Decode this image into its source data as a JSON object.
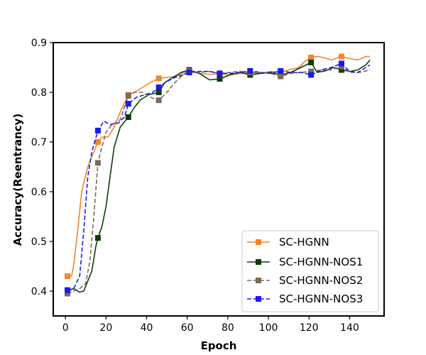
{
  "chart_data": {
    "type": "line",
    "title": "",
    "xlabel": "Epoch",
    "ylabel": "Accuracy(Reentrancy)",
    "xlim": [
      -6,
      157
    ],
    "ylim": [
      0.35,
      0.9
    ],
    "xticks": [
      0,
      20,
      40,
      60,
      80,
      100,
      120,
      140
    ],
    "yticks": [
      0.4,
      0.5,
      0.6,
      0.7,
      0.8,
      0.9
    ],
    "grid": false,
    "legend_position": "lower-right",
    "series": [
      {
        "name": "SC-HGNN",
        "color": "#f5842b",
        "dash": "solid",
        "marker": "square",
        "points": [
          [
            1,
            0.43
          ],
          [
            3,
            0.43
          ],
          [
            4,
            0.45
          ],
          [
            6,
            0.52
          ],
          [
            8,
            0.6
          ],
          [
            11,
            0.65
          ],
          [
            14,
            0.68
          ],
          [
            16,
            0.7
          ],
          [
            18,
            0.71
          ],
          [
            21,
            0.71
          ],
          [
            24,
            0.73
          ],
          [
            27,
            0.76
          ],
          [
            31,
            0.795
          ],
          [
            34,
            0.8
          ],
          [
            38,
            0.81
          ],
          [
            42,
            0.82
          ],
          [
            46,
            0.828
          ],
          [
            50,
            0.83
          ],
          [
            55,
            0.832
          ],
          [
            58,
            0.84
          ],
          [
            61,
            0.842
          ],
          [
            66,
            0.838
          ],
          [
            71,
            0.836
          ],
          [
            76,
            0.838
          ],
          [
            81,
            0.835
          ],
          [
            86,
            0.838
          ],
          [
            91,
            0.84
          ],
          [
            96,
            0.838
          ],
          [
            101,
            0.842
          ],
          [
            106,
            0.84
          ],
          [
            110,
            0.845
          ],
          [
            115,
            0.85
          ],
          [
            118,
            0.862
          ],
          [
            121,
            0.87
          ],
          [
            124,
            0.872
          ],
          [
            127,
            0.87
          ],
          [
            131,
            0.865
          ],
          [
            136,
            0.872
          ],
          [
            140,
            0.868
          ],
          [
            144,
            0.865
          ],
          [
            148,
            0.872
          ],
          [
            150,
            0.872
          ]
        ],
        "markers": [
          [
            1,
            0.43
          ],
          [
            16,
            0.7
          ],
          [
            31,
            0.795
          ],
          [
            46,
            0.828
          ],
          [
            61,
            0.842
          ],
          [
            76,
            0.838
          ],
          [
            91,
            0.84
          ],
          [
            106,
            0.84
          ],
          [
            121,
            0.87
          ],
          [
            136,
            0.872
          ]
        ]
      },
      {
        "name": "SC-HGNN-NOS1",
        "color": "#0a3d0a",
        "dash": "solid",
        "marker": "square",
        "points": [
          [
            1,
            0.4
          ],
          [
            4,
            0.405
          ],
          [
            7,
            0.398
          ],
          [
            9,
            0.4
          ],
          [
            11,
            0.42
          ],
          [
            13,
            0.44
          ],
          [
            15,
            0.49
          ],
          [
            16,
            0.507
          ],
          [
            18,
            0.53
          ],
          [
            20,
            0.57
          ],
          [
            22,
            0.63
          ],
          [
            24,
            0.69
          ],
          [
            27,
            0.73
          ],
          [
            31,
            0.75
          ],
          [
            34,
            0.77
          ],
          [
            37,
            0.785
          ],
          [
            41,
            0.795
          ],
          [
            46,
            0.8
          ],
          [
            49,
            0.82
          ],
          [
            53,
            0.83
          ],
          [
            57,
            0.84
          ],
          [
            61,
            0.845
          ],
          [
            66,
            0.838
          ],
          [
            71,
            0.825
          ],
          [
            76,
            0.827
          ],
          [
            81,
            0.835
          ],
          [
            86,
            0.84
          ],
          [
            91,
            0.835
          ],
          [
            96,
            0.838
          ],
          [
            101,
            0.84
          ],
          [
            106,
            0.835
          ],
          [
            111,
            0.84
          ],
          [
            116,
            0.85
          ],
          [
            121,
            0.86
          ],
          [
            124,
            0.84
          ],
          [
            128,
            0.843
          ],
          [
            132,
            0.85
          ],
          [
            136,
            0.845
          ],
          [
            140,
            0.842
          ],
          [
            144,
            0.845
          ],
          [
            148,
            0.855
          ],
          [
            150,
            0.865
          ]
        ],
        "markers": [
          [
            1,
            0.4
          ],
          [
            16,
            0.507
          ],
          [
            31,
            0.75
          ],
          [
            46,
            0.8
          ],
          [
            61,
            0.845
          ],
          [
            76,
            0.827
          ],
          [
            91,
            0.835
          ],
          [
            106,
            0.835
          ],
          [
            121,
            0.86
          ],
          [
            136,
            0.845
          ]
        ]
      },
      {
        "name": "SC-HGNN-NOS2",
        "color": "#7b6a58",
        "dash": "dash",
        "marker": "square",
        "points": [
          [
            1,
            0.395
          ],
          [
            4,
            0.4
          ],
          [
            7,
            0.405
          ],
          [
            10,
            0.415
          ],
          [
            12,
            0.46
          ],
          [
            14,
            0.55
          ],
          [
            16,
            0.658
          ],
          [
            18,
            0.69
          ],
          [
            20,
            0.72
          ],
          [
            23,
            0.735
          ],
          [
            27,
            0.745
          ],
          [
            31,
            0.793
          ],
          [
            34,
            0.8
          ],
          [
            38,
            0.8
          ],
          [
            42,
            0.79
          ],
          [
            46,
            0.784
          ],
          [
            50,
            0.8
          ],
          [
            54,
            0.82
          ],
          [
            58,
            0.835
          ],
          [
            61,
            0.843
          ],
          [
            66,
            0.84
          ],
          [
            71,
            0.842
          ],
          [
            76,
            0.838
          ],
          [
            81,
            0.84
          ],
          [
            86,
            0.842
          ],
          [
            91,
            0.84
          ],
          [
            96,
            0.84
          ],
          [
            101,
            0.838
          ],
          [
            106,
            0.832
          ],
          [
            111,
            0.838
          ],
          [
            116,
            0.84
          ],
          [
            121,
            0.842
          ],
          [
            126,
            0.845
          ],
          [
            131,
            0.845
          ],
          [
            136,
            0.852
          ],
          [
            140,
            0.84
          ],
          [
            145,
            0.84
          ],
          [
            150,
            0.845
          ]
        ],
        "markers": [
          [
            1,
            0.395
          ],
          [
            16,
            0.658
          ],
          [
            31,
            0.793
          ],
          [
            46,
            0.784
          ],
          [
            61,
            0.843
          ],
          [
            76,
            0.838
          ],
          [
            91,
            0.84
          ],
          [
            106,
            0.832
          ],
          [
            121,
            0.842
          ],
          [
            136,
            0.852
          ]
        ]
      },
      {
        "name": "SC-HGNN-NOS3",
        "color": "#1a1aef",
        "dash": "dash",
        "marker": "square",
        "points": [
          [
            1,
            0.402
          ],
          [
            4,
            0.405
          ],
          [
            7,
            0.43
          ],
          [
            9,
            0.52
          ],
          [
            11,
            0.63
          ],
          [
            13,
            0.68
          ],
          [
            16,
            0.723
          ],
          [
            19,
            0.742
          ],
          [
            22,
            0.735
          ],
          [
            26,
            0.738
          ],
          [
            29,
            0.75
          ],
          [
            31,
            0.777
          ],
          [
            35,
            0.79
          ],
          [
            39,
            0.795
          ],
          [
            43,
            0.8
          ],
          [
            46,
            0.81
          ],
          [
            50,
            0.822
          ],
          [
            54,
            0.83
          ],
          [
            58,
            0.835
          ],
          [
            61,
            0.84
          ],
          [
            66,
            0.842
          ],
          [
            71,
            0.842
          ],
          [
            76,
            0.838
          ],
          [
            81,
            0.838
          ],
          [
            86,
            0.84
          ],
          [
            91,
            0.843
          ],
          [
            96,
            0.84
          ],
          [
            101,
            0.838
          ],
          [
            106,
            0.843
          ],
          [
            111,
            0.84
          ],
          [
            116,
            0.84
          ],
          [
            121,
            0.835
          ],
          [
            126,
            0.845
          ],
          [
            131,
            0.85
          ],
          [
            136,
            0.858
          ],
          [
            140,
            0.842
          ],
          [
            144,
            0.84
          ],
          [
            148,
            0.85
          ],
          [
            150,
            0.855
          ]
        ],
        "markers": [
          [
            1,
            0.402
          ],
          [
            16,
            0.723
          ],
          [
            31,
            0.777
          ],
          [
            46,
            0.81
          ],
          [
            61,
            0.84
          ],
          [
            76,
            0.838
          ],
          [
            91,
            0.843
          ],
          [
            106,
            0.843
          ],
          [
            121,
            0.835
          ],
          [
            136,
            0.858
          ]
        ]
      }
    ]
  }
}
